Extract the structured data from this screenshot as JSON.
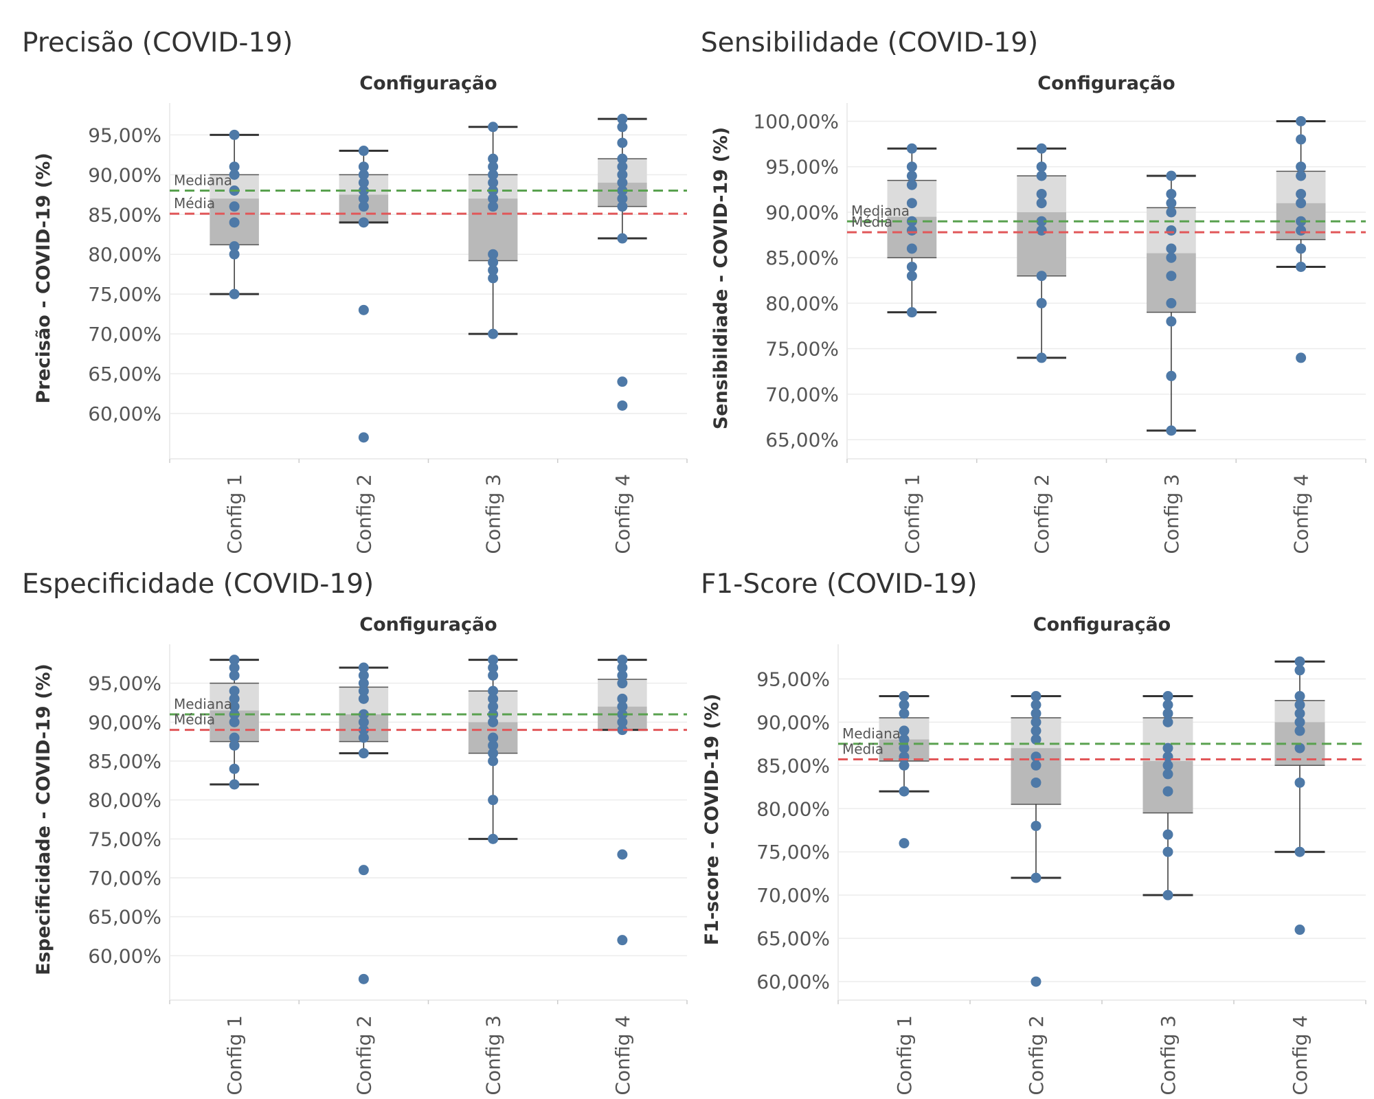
{
  "colors": {
    "point": "#4e79a7",
    "box_upper": "#dcdcdc",
    "box_lower": "#b9b9b9",
    "whisker": "#333333",
    "median_line": "#59a14f",
    "mean_line": "#e15759",
    "grid": "#ececec"
  },
  "ref_labels": {
    "median": "Mediana",
    "mean": "Média"
  },
  "chart_data": [
    {
      "type": "box",
      "panel_title": "Precisão (COVID-19)",
      "column_header": "Configuração",
      "ylabel": "Precisão - COVID-19 (%)",
      "ylim": [
        55,
        99
      ],
      "yticks": [
        60,
        65,
        70,
        75,
        80,
        85,
        90,
        95
      ],
      "tick_labels": [
        "60,00%",
        "65,00%",
        "70,00%",
        "75,00%",
        "80,00%",
        "85,00%",
        "90,00%",
        "95,00%"
      ],
      "categories": [
        "Config 1",
        "Config 2",
        "Config 3",
        "Config 4"
      ],
      "median_line": 88,
      "mean_line": 85.1,
      "boxes": [
        {
          "q1": 81.2,
          "median": 87,
          "q3": 90,
          "whisker_low": 75,
          "whisker_high": 95,
          "points": [
            95,
            91,
            90,
            88,
            86,
            84,
            81,
            80,
            75
          ]
        },
        {
          "q1": 84,
          "median": 87.5,
          "q3": 90,
          "whisker_low": 84,
          "whisker_high": 93,
          "points": [
            93,
            91,
            90,
            89,
            88,
            87,
            86,
            84,
            73,
            57
          ]
        },
        {
          "q1": 79.2,
          "median": 87,
          "q3": 90,
          "whisker_low": 70,
          "whisker_high": 96,
          "points": [
            96,
            92,
            91,
            90,
            89,
            88,
            87,
            86,
            80,
            79,
            78,
            77,
            70
          ]
        },
        {
          "q1": 86,
          "median": 89,
          "q3": 92,
          "whisker_low": 82,
          "whisker_high": 97,
          "points": [
            97,
            96,
            94,
            92,
            91,
            90,
            89,
            88,
            87,
            86,
            82,
            64,
            61
          ]
        }
      ]
    },
    {
      "type": "box",
      "panel_title": "Sensibilidade (COVID-19)",
      "column_header": "Configuração",
      "ylabel": "Sensibildiade - COVID-19 (%)",
      "ylim": [
        63.5,
        102
      ],
      "yticks": [
        65,
        70,
        75,
        80,
        85,
        90,
        95,
        100
      ],
      "tick_labels": [
        "65,00%",
        "70,00%",
        "75,00%",
        "80,00%",
        "85,00%",
        "90,00%",
        "95,00%",
        "100,00%"
      ],
      "categories": [
        "Config 1",
        "Config 2",
        "Config 3",
        "Config 4"
      ],
      "median_line": 89,
      "mean_line": 87.8,
      "boxes": [
        {
          "q1": 85,
          "median": 89.5,
          "q3": 93.5,
          "whisker_low": 79,
          "whisker_high": 97,
          "points": [
            97,
            95,
            94,
            93,
            91,
            89,
            88,
            86,
            84,
            83,
            79
          ]
        },
        {
          "q1": 83,
          "median": 90,
          "q3": 94,
          "whisker_low": 74,
          "whisker_high": 97,
          "points": [
            97,
            95,
            94,
            92,
            91,
            89,
            88,
            83,
            80,
            74
          ]
        },
        {
          "q1": 79,
          "median": 85.5,
          "q3": 90.5,
          "whisker_low": 66,
          "whisker_high": 94,
          "points": [
            94,
            92,
            91,
            90,
            88,
            86,
            85,
            83,
            80,
            78,
            72,
            66
          ]
        },
        {
          "q1": 87,
          "median": 91,
          "q3": 94.5,
          "whisker_low": 84,
          "whisker_high": 100,
          "points": [
            100,
            98,
            95,
            94,
            92,
            91,
            89,
            88,
            86,
            84,
            74
          ]
        }
      ]
    },
    {
      "type": "box",
      "panel_title": "Especificidade (COVID-19)",
      "column_header": "Configuração",
      "ylabel": "Especificidade - COVID-19 (%)",
      "ylim": [
        55,
        100
      ],
      "yticks": [
        60,
        65,
        70,
        75,
        80,
        85,
        90,
        95
      ],
      "tick_labels": [
        "60,00%",
        "65,00%",
        "70,00%",
        "75,00%",
        "80,00%",
        "85,00%",
        "90,00%",
        "95,00%"
      ],
      "categories": [
        "Config 1",
        "Config 2",
        "Config 3",
        "Config 4"
      ],
      "median_line": 91,
      "mean_line": 89,
      "boxes": [
        {
          "q1": 87.5,
          "median": 91.5,
          "q3": 95,
          "whisker_low": 82,
          "whisker_high": 98,
          "points": [
            98,
            97,
            96,
            94,
            93,
            92,
            91,
            90,
            88,
            87,
            84,
            82
          ]
        },
        {
          "q1": 87.5,
          "median": 91,
          "q3": 94.5,
          "whisker_low": 86,
          "whisker_high": 97,
          "points": [
            97,
            96,
            95,
            94,
            93,
            91,
            90,
            89,
            88,
            86,
            71,
            57
          ]
        },
        {
          "q1": 86,
          "median": 90,
          "q3": 94,
          "whisker_low": 75,
          "whisker_high": 98,
          "points": [
            98,
            97,
            96,
            94,
            93,
            92,
            91,
            90,
            88,
            87,
            86,
            85,
            80,
            75
          ]
        },
        {
          "q1": 89,
          "median": 92,
          "q3": 95.5,
          "whisker_low": 89,
          "whisker_high": 98,
          "points": [
            98,
            97,
            96,
            95,
            93,
            92,
            91,
            90,
            89,
            73,
            62
          ]
        }
      ]
    },
    {
      "type": "box",
      "panel_title": "F1-Score (COVID-19)",
      "column_header": "Configuração",
      "ylabel": "F1-score - COVID-19 (%)",
      "ylim": [
        58.5,
        99
      ],
      "yticks": [
        60,
        65,
        70,
        75,
        80,
        85,
        90,
        95
      ],
      "tick_labels": [
        "60,00%",
        "65,00%",
        "70,00%",
        "75,00%",
        "80,00%",
        "85,00%",
        "90,00%",
        "95,00%"
      ],
      "categories": [
        "Config 1",
        "Config 2",
        "Config 3",
        "Config 4"
      ],
      "median_line": 87.5,
      "mean_line": 85.7,
      "boxes": [
        {
          "q1": 85.5,
          "median": 88,
          "q3": 90.5,
          "whisker_low": 82,
          "whisker_high": 93,
          "points": [
            93,
            92,
            91,
            89,
            88,
            87,
            86,
            85,
            82,
            76
          ]
        },
        {
          "q1": 80.5,
          "median": 87,
          "q3": 90.5,
          "whisker_low": 72,
          "whisker_high": 93,
          "points": [
            93,
            92,
            91,
            90,
            89,
            88,
            86,
            85,
            83,
            78,
            72,
            60
          ]
        },
        {
          "q1": 79.5,
          "median": 85.5,
          "q3": 90.5,
          "whisker_low": 70,
          "whisker_high": 93,
          "points": [
            93,
            92,
            91,
            90,
            87,
            86,
            85,
            84,
            82,
            77,
            75,
            70
          ]
        },
        {
          "q1": 85,
          "median": 90,
          "q3": 92.5,
          "whisker_low": 75,
          "whisker_high": 97,
          "points": [
            97,
            96,
            93,
            92,
            91,
            90,
            89,
            87,
            83,
            75,
            66
          ]
        }
      ]
    }
  ]
}
